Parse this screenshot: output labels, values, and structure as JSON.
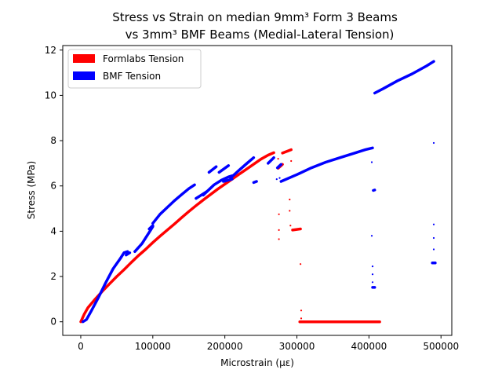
{
  "chart_data": {
    "type": "scatter",
    "title_lines": [
      "Stress vs Strain on median 9mm³ Form 3 Beams",
      "vs 3mm³ BMF Beams (Medial-Lateral Tension)"
    ],
    "xlabel": "Microstrain (με)",
    "ylabel": "Stress (MPa)",
    "xlim": [
      -25000,
      515000
    ],
    "ylim": [
      -0.6,
      12.2
    ],
    "xticks": [
      0,
      100000,
      200000,
      300000,
      400000,
      500000
    ],
    "xtick_labels": [
      "0",
      "100000",
      "200000",
      "300000",
      "400000",
      "500000"
    ],
    "yticks": [
      0,
      2,
      4,
      6,
      8,
      10,
      12
    ],
    "ytick_labels": [
      "0",
      "2",
      "4",
      "6",
      "8",
      "10",
      "12"
    ],
    "grid": false,
    "legend_position": "top-left",
    "series": [
      {
        "name": "Formlabs Tension",
        "color": "#ff0000",
        "segments": [
          [
            [
              0,
              0
            ],
            [
              5000,
              0.35
            ],
            [
              10000,
              0.62
            ],
            [
              20000,
              1.0
            ],
            [
              30000,
              1.35
            ],
            [
              40000,
              1.68
            ],
            [
              50000,
              2.0
            ],
            [
              60000,
              2.3
            ],
            [
              70000,
              2.62
            ],
            [
              80000,
              2.92
            ],
            [
              90000,
              3.2
            ],
            [
              100000,
              3.5
            ],
            [
              110000,
              3.78
            ],
            [
              120000,
              4.05
            ],
            [
              130000,
              4.32
            ],
            [
              140000,
              4.6
            ],
            [
              150000,
              4.87
            ],
            [
              160000,
              5.13
            ],
            [
              170000,
              5.38
            ],
            [
              180000,
              5.62
            ],
            [
              190000,
              5.86
            ],
            [
              200000,
              6.08
            ],
            [
              210000,
              6.3
            ],
            [
              220000,
              6.52
            ],
            [
              230000,
              6.74
            ],
            [
              240000,
              6.96
            ],
            [
              250000,
              7.18
            ],
            [
              260000,
              7.36
            ],
            [
              268000,
              7.47
            ]
          ],
          [
            [
              274000,
              6.78
            ],
            [
              280000,
              6.95
            ]
          ],
          [
            [
              280000,
              7.45
            ],
            [
              292000,
              7.6
            ]
          ],
          [
            [
              294000,
              4.05
            ],
            [
              305000,
              4.1
            ]
          ],
          [
            [
              304000,
              0.0
            ],
            [
              415000,
              0.0
            ]
          ]
        ],
        "points": [
          [
            274000,
            7.2
          ],
          [
            275000,
            4.75
          ],
          [
            275000,
            4.05
          ],
          [
            275000,
            3.65
          ],
          [
            290000,
            5.4
          ],
          [
            290000,
            4.9
          ],
          [
            291000,
            4.25
          ],
          [
            292000,
            7.1
          ],
          [
            305000,
            2.55
          ],
          [
            306000,
            0.5
          ],
          [
            306000,
            0.15
          ]
        ]
      },
      {
        "name": "BMF Tension",
        "color": "#0000ff",
        "segments": [
          [
            [
              3000,
              0.0
            ],
            [
              8000,
              0.1
            ],
            [
              15000,
              0.5
            ],
            [
              25000,
              1.1
            ],
            [
              35000,
              1.75
            ],
            [
              45000,
              2.35
            ],
            [
              55000,
              2.8
            ],
            [
              60000,
              3.05
            ],
            [
              65000,
              3.1
            ]
          ],
          [
            [
              63000,
              2.95
            ],
            [
              68000,
              3.05
            ]
          ],
          [
            [
              75000,
              3.1
            ],
            [
              85000,
              3.45
            ],
            [
              95000,
              3.95
            ],
            [
              100000,
              4.2
            ]
          ],
          [
            [
              95000,
              4.1
            ],
            [
              100000,
              4.25
            ]
          ],
          [
            [
              100000,
              4.35
            ],
            [
              110000,
              4.75
            ],
            [
              120000,
              5.05
            ],
            [
              130000,
              5.35
            ],
            [
              140000,
              5.62
            ],
            [
              150000,
              5.88
            ],
            [
              158000,
              6.05
            ]
          ],
          [
            [
              160000,
              5.45
            ],
            [
              175000,
              5.75
            ]
          ],
          [
            [
              178000,
              6.6
            ],
            [
              188000,
              6.85
            ]
          ],
          [
            [
              170000,
              5.6
            ],
            [
              185000,
              6.05
            ],
            [
              195000,
              6.25
            ],
            [
              205000,
              6.4
            ],
            [
              210000,
              6.45
            ]
          ],
          [
            [
              192000,
              6.6
            ],
            [
              205000,
              6.9
            ]
          ],
          [
            [
              198000,
              6.2
            ],
            [
              210000,
              6.3
            ]
          ],
          [
            [
              208000,
              6.35
            ],
            [
              220000,
              6.7
            ],
            [
              230000,
              6.98
            ],
            [
              240000,
              7.25
            ]
          ],
          [
            [
              240000,
              6.15
            ],
            [
              244000,
              6.2
            ]
          ],
          [
            [
              260000,
              7.0
            ],
            [
              268000,
              7.25
            ]
          ],
          [
            [
              273000,
              6.8
            ],
            [
              278000,
              6.95
            ]
          ],
          [
            [
              278000,
              6.2
            ],
            [
              300000,
              6.5
            ],
            [
              320000,
              6.8
            ],
            [
              340000,
              7.05
            ],
            [
              360000,
              7.25
            ],
            [
              380000,
              7.45
            ],
            [
              395000,
              7.6
            ],
            [
              405000,
              7.68
            ]
          ],
          [
            [
              406000,
              5.8
            ],
            [
              408000,
              5.82
            ]
          ],
          [
            [
              405000,
              1.52
            ],
            [
              408000,
              1.52
            ]
          ],
          [
            [
              408000,
              10.1
            ],
            [
              420000,
              10.3
            ],
            [
              440000,
              10.65
            ],
            [
              460000,
              10.95
            ],
            [
              480000,
              11.3
            ],
            [
              490000,
              11.5
            ]
          ],
          [
            [
              488000,
              2.6
            ],
            [
              492000,
              2.6
            ]
          ]
        ],
        "points": [
          [
            272000,
            6.3
          ],
          [
            276000,
            6.35
          ],
          [
            404000,
            7.05
          ],
          [
            404000,
            3.8
          ],
          [
            405000,
            2.45
          ],
          [
            405000,
            2.1
          ],
          [
            405000,
            1.75
          ],
          [
            490000,
            7.9
          ],
          [
            490000,
            4.3
          ],
          [
            490000,
            3.7
          ],
          [
            490000,
            3.2
          ]
        ]
      }
    ]
  }
}
